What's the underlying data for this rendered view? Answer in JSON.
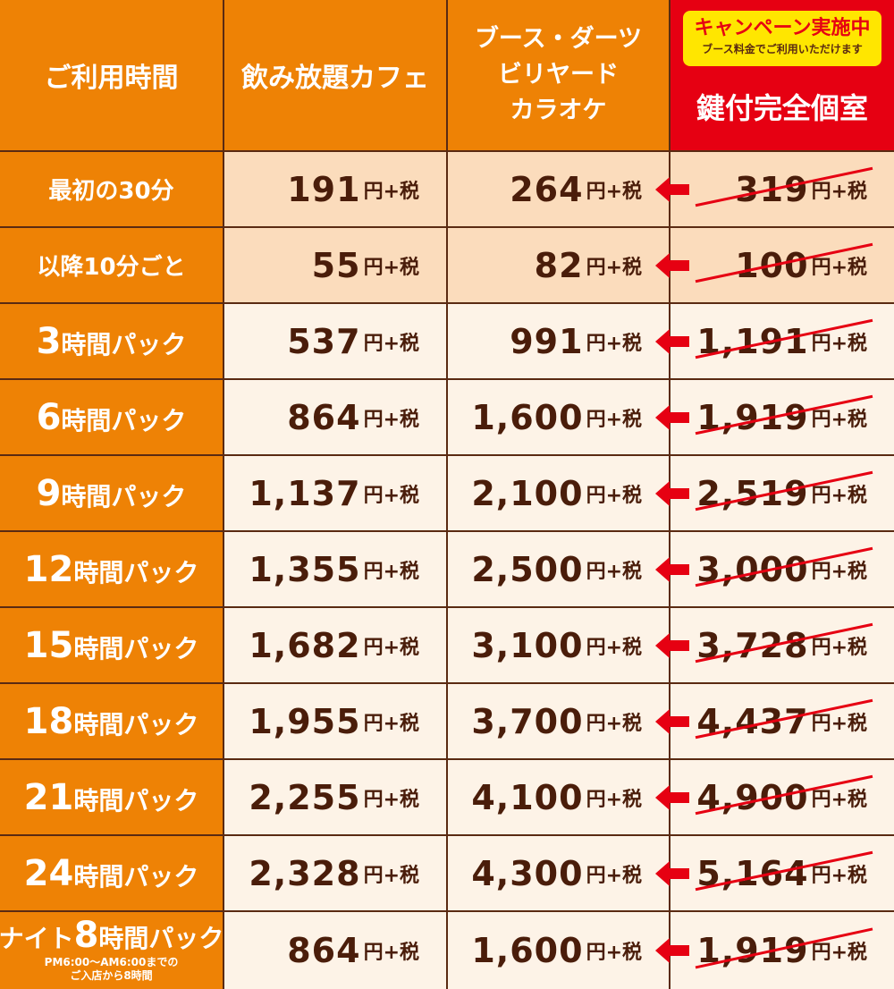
{
  "header": {
    "col_time": "ご利用時間",
    "col_cafe": "飲み放題カフェ",
    "col_booth_lines": [
      "ブース・ダーツ",
      "ビリヤード",
      "カラオケ"
    ],
    "campaign_title": "キャンペーン実施中",
    "campaign_subtitle": "ブース料金でご利用いただけます",
    "col_private": "鍵付完全個室"
  },
  "unit": "円+税",
  "rows": [
    {
      "label_pre": "",
      "label_num": "",
      "label_text": "最初の30分",
      "cafe": "191",
      "booth": "264",
      "private": "319"
    },
    {
      "label_pre": "",
      "label_num": "",
      "label_text": "以降10分ごと",
      "cafe": "55",
      "booth": "82",
      "private": "100"
    },
    {
      "label_pre": "",
      "label_num": "3",
      "label_text": "時間パック",
      "cafe": "537",
      "booth": "991",
      "private": "1,191"
    },
    {
      "label_pre": "",
      "label_num": "6",
      "label_text": "時間パック",
      "cafe": "864",
      "booth": "1,600",
      "private": "1,919"
    },
    {
      "label_pre": "",
      "label_num": "9",
      "label_text": "時間パック",
      "cafe": "1,137",
      "booth": "2,100",
      "private": "2,519"
    },
    {
      "label_pre": "",
      "label_num": "12",
      "label_text": "時間パック",
      "cafe": "1,355",
      "booth": "2,500",
      "private": "3,000"
    },
    {
      "label_pre": "",
      "label_num": "15",
      "label_text": "時間パック",
      "cafe": "1,682",
      "booth": "3,100",
      "private": "3,728"
    },
    {
      "label_pre": "",
      "label_num": "18",
      "label_text": "時間パック",
      "cafe": "1,955",
      "booth": "3,700",
      "private": "4,437"
    },
    {
      "label_pre": "",
      "label_num": "21",
      "label_text": "時間パック",
      "cafe": "2,255",
      "booth": "4,100",
      "private": "4,900"
    },
    {
      "label_pre": "",
      "label_num": "24",
      "label_text": "時間パック",
      "cafe": "2,328",
      "booth": "4,300",
      "private": "5,164"
    },
    {
      "label_pre": "ナイト",
      "label_num": "8",
      "label_text": "時間パック",
      "cafe": "864",
      "booth": "1,600",
      "private": "1,919",
      "note_lines": [
        "PM6:00～AM6:00までの",
        "ご入店から8時間"
      ]
    }
  ],
  "colors": {
    "orange": "#ee8205",
    "peach": "#fbdcbc",
    "cream": "#fdf3e7",
    "red": "#e60012",
    "yellow": "#ffe600",
    "text_brown": "#4a1d0a",
    "border": "#5a2a12"
  },
  "icons": {
    "arrow": "left-arrow-icon",
    "strike": "strikethrough-line"
  }
}
